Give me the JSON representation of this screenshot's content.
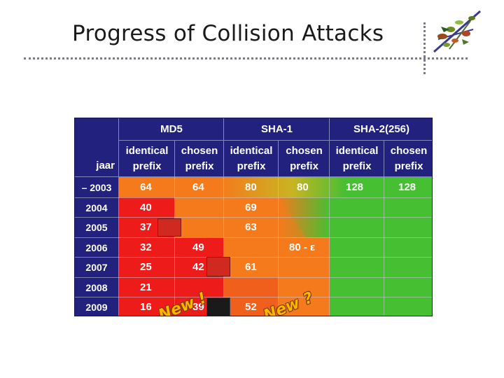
{
  "slide": {
    "title": "Progress of Collision Attacks"
  },
  "table": {
    "corner_label": "jaar",
    "groups": [
      "MD5",
      "SHA-1",
      "SHA-2(256)"
    ],
    "columns": [
      "identical prefix",
      "chosen prefix",
      "identical prefix",
      "chosen prefix",
      "identical prefix",
      "chosen prefix"
    ],
    "rows": [
      {
        "year": "– 2003",
        "md5_identical": "64",
        "md5_chosen": "64",
        "sha1_identical": "80",
        "sha1_chosen": "80",
        "sha2_identical": "128",
        "sha2_chosen": "128"
      },
      {
        "year": "2004",
        "md5_identical": "40",
        "sha1_identical": "69"
      },
      {
        "year": "2005",
        "md5_identical": "37",
        "sha1_identical": "63"
      },
      {
        "year": "2006",
        "md5_identical": "32",
        "md5_chosen": "49",
        "sha1_chosen": "80 - ε"
      },
      {
        "year": "2007",
        "md5_identical": "25",
        "md5_chosen": "42",
        "sha1_identical": "61"
      },
      {
        "year": "2008",
        "md5_identical": "21"
      },
      {
        "year": "2009",
        "md5_identical": "16",
        "md5_chosen": "39",
        "sha1_identical": "52"
      }
    ],
    "stickers": [
      "New !",
      "New ?"
    ],
    "colors": {
      "header_bg": "#22227e",
      "red": "#ee1b1b",
      "orange": "#f57a1c",
      "green": "#47bf33"
    }
  }
}
